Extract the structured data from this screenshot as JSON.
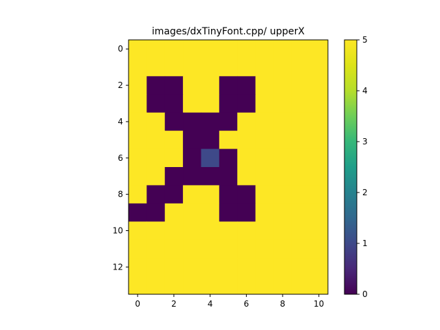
{
  "chart_data": {
    "type": "heatmap",
    "title": "images/dxTinyFont.cpp/ upperX",
    "xlabel": "",
    "ylabel": "",
    "rows": 14,
    "cols": 11,
    "xlim": [
      -0.5,
      10.5
    ],
    "ylim": [
      13.5,
      -0.5
    ],
    "xticks": [
      0,
      2,
      4,
      6,
      8,
      10
    ],
    "yticks": [
      0,
      2,
      4,
      6,
      8,
      10,
      12
    ],
    "colormap": "viridis",
    "vmin": 0,
    "vmax": 5,
    "colorbar_ticks": [
      0,
      1,
      2,
      3,
      4,
      5
    ],
    "values": [
      [
        5,
        5,
        5,
        5,
        5,
        5,
        5,
        5,
        5,
        5,
        5
      ],
      [
        5,
        5,
        5,
        5,
        5,
        5,
        5,
        5,
        5,
        5,
        5
      ],
      [
        5,
        0,
        0,
        5,
        5,
        0,
        0,
        5,
        5,
        5,
        5
      ],
      [
        5,
        0,
        0,
        5,
        5,
        0,
        0,
        5,
        5,
        5,
        5
      ],
      [
        5,
        5,
        0,
        0,
        0,
        0,
        5,
        5,
        5,
        5,
        5
      ],
      [
        5,
        5,
        5,
        0,
        0,
        5,
        5,
        5,
        5,
        5,
        5
      ],
      [
        5,
        5,
        5,
        0,
        1,
        0,
        5,
        5,
        5,
        5,
        5
      ],
      [
        5,
        5,
        0,
        0,
        0,
        0,
        5,
        5,
        5,
        5,
        5
      ],
      [
        5,
        0,
        0,
        5,
        5,
        0,
        0,
        5,
        5,
        5,
        5
      ],
      [
        0,
        0,
        5,
        5,
        5,
        0,
        0,
        5,
        5,
        5,
        5
      ],
      [
        5,
        5,
        5,
        5,
        5,
        5,
        5,
        5,
        5,
        5,
        5
      ],
      [
        5,
        5,
        5,
        5,
        5,
        5,
        5,
        5,
        5,
        5,
        5
      ],
      [
        5,
        5,
        5,
        5,
        5,
        5,
        5,
        5,
        5,
        5,
        5
      ],
      [
        5,
        5,
        5,
        5,
        5,
        5,
        5,
        5,
        5,
        5,
        5
      ]
    ]
  }
}
